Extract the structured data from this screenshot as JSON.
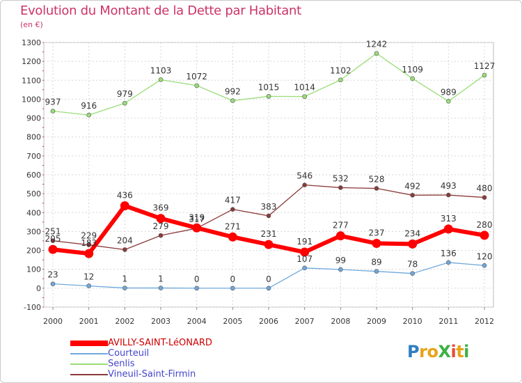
{
  "chart_data": {
    "type": "line",
    "title": "Evolution du Montant de la Dette par Habitant",
    "subtitle": "(en €)",
    "xlabel": "",
    "ylabel": "",
    "ylim": [
      -100,
      1300
    ],
    "yticks": [
      -100,
      0,
      100,
      200,
      300,
      400,
      500,
      600,
      700,
      800,
      900,
      1000,
      1100,
      1200,
      1300
    ],
    "categories": [
      "2000",
      "2001",
      "2002",
      "2003",
      "2004",
      "2005",
      "2006",
      "2007",
      "2008",
      "2009",
      "2010",
      "2011",
      "2012"
    ],
    "grid": true,
    "legend_position": "bottom-left",
    "series": [
      {
        "name": "AVILLY-SAINT-LéONARD",
        "color": "#ff0000",
        "values": [
          205,
          183,
          436,
          369,
          319,
          271,
          231,
          191,
          277,
          237,
          234,
          313,
          280
        ],
        "labels": [
          "205",
          "183",
          "436",
          "369",
          "319",
          "271",
          "231",
          "191",
          "277",
          "237",
          "234",
          "313",
          "280"
        ]
      },
      {
        "name": "Courteuil",
        "color": "#6fa8dc",
        "values": [
          23,
          12,
          1,
          1,
          0,
          0,
          0,
          107,
          99,
          89,
          78,
          136,
          120
        ],
        "labels": [
          "23",
          "12",
          "1",
          "1",
          "0",
          "0",
          "0",
          "107",
          "99",
          "89",
          "78",
          "136",
          "120"
        ]
      },
      {
        "name": "Senlis",
        "color": "#99dd77",
        "values": [
          937,
          916,
          979,
          1103,
          1072,
          992,
          1015,
          1014,
          1102,
          1242,
          1109,
          989,
          1127
        ],
        "labels": [
          "937",
          "916",
          "979",
          "1103",
          "1072",
          "992",
          "1015",
          "1014",
          "1102",
          "1242",
          "1109",
          "989",
          "1127"
        ]
      },
      {
        "name": "Vineuil-Saint-Firmin",
        "color": "#8b3a3a",
        "values": [
          251,
          229,
          204,
          279,
          317,
          417,
          383,
          546,
          532,
          528,
          492,
          493,
          480
        ],
        "labels": [
          "251",
          "229",
          "204",
          "279",
          "317",
          "417",
          "383",
          "546",
          "532",
          "528",
          "492",
          "493",
          "480"
        ]
      }
    ]
  },
  "legend": {
    "items": [
      {
        "name": "AVILLY-SAINT-LéONARD",
        "color": "#ff0000"
      },
      {
        "name": "Courteuil",
        "color": "#6fa8dc"
      },
      {
        "name": "Senlis",
        "color": "#99dd77"
      },
      {
        "name": "Vineuil-Saint-Firmin",
        "color": "#8b3a3a"
      }
    ]
  },
  "logo": {
    "text": "ProXiti",
    "letters": [
      {
        "ch": "P",
        "color": "#2f7fc1"
      },
      {
        "ch": "r",
        "color": "#e8a317"
      },
      {
        "ch": "o",
        "color": "#e8a317"
      },
      {
        "ch": "X",
        "color": "#3cb043"
      },
      {
        "ch": "i",
        "color": "#e84c3d"
      },
      {
        "ch": "t",
        "color": "#e8a317"
      },
      {
        "ch": "i",
        "color": "#3cb043"
      }
    ]
  }
}
